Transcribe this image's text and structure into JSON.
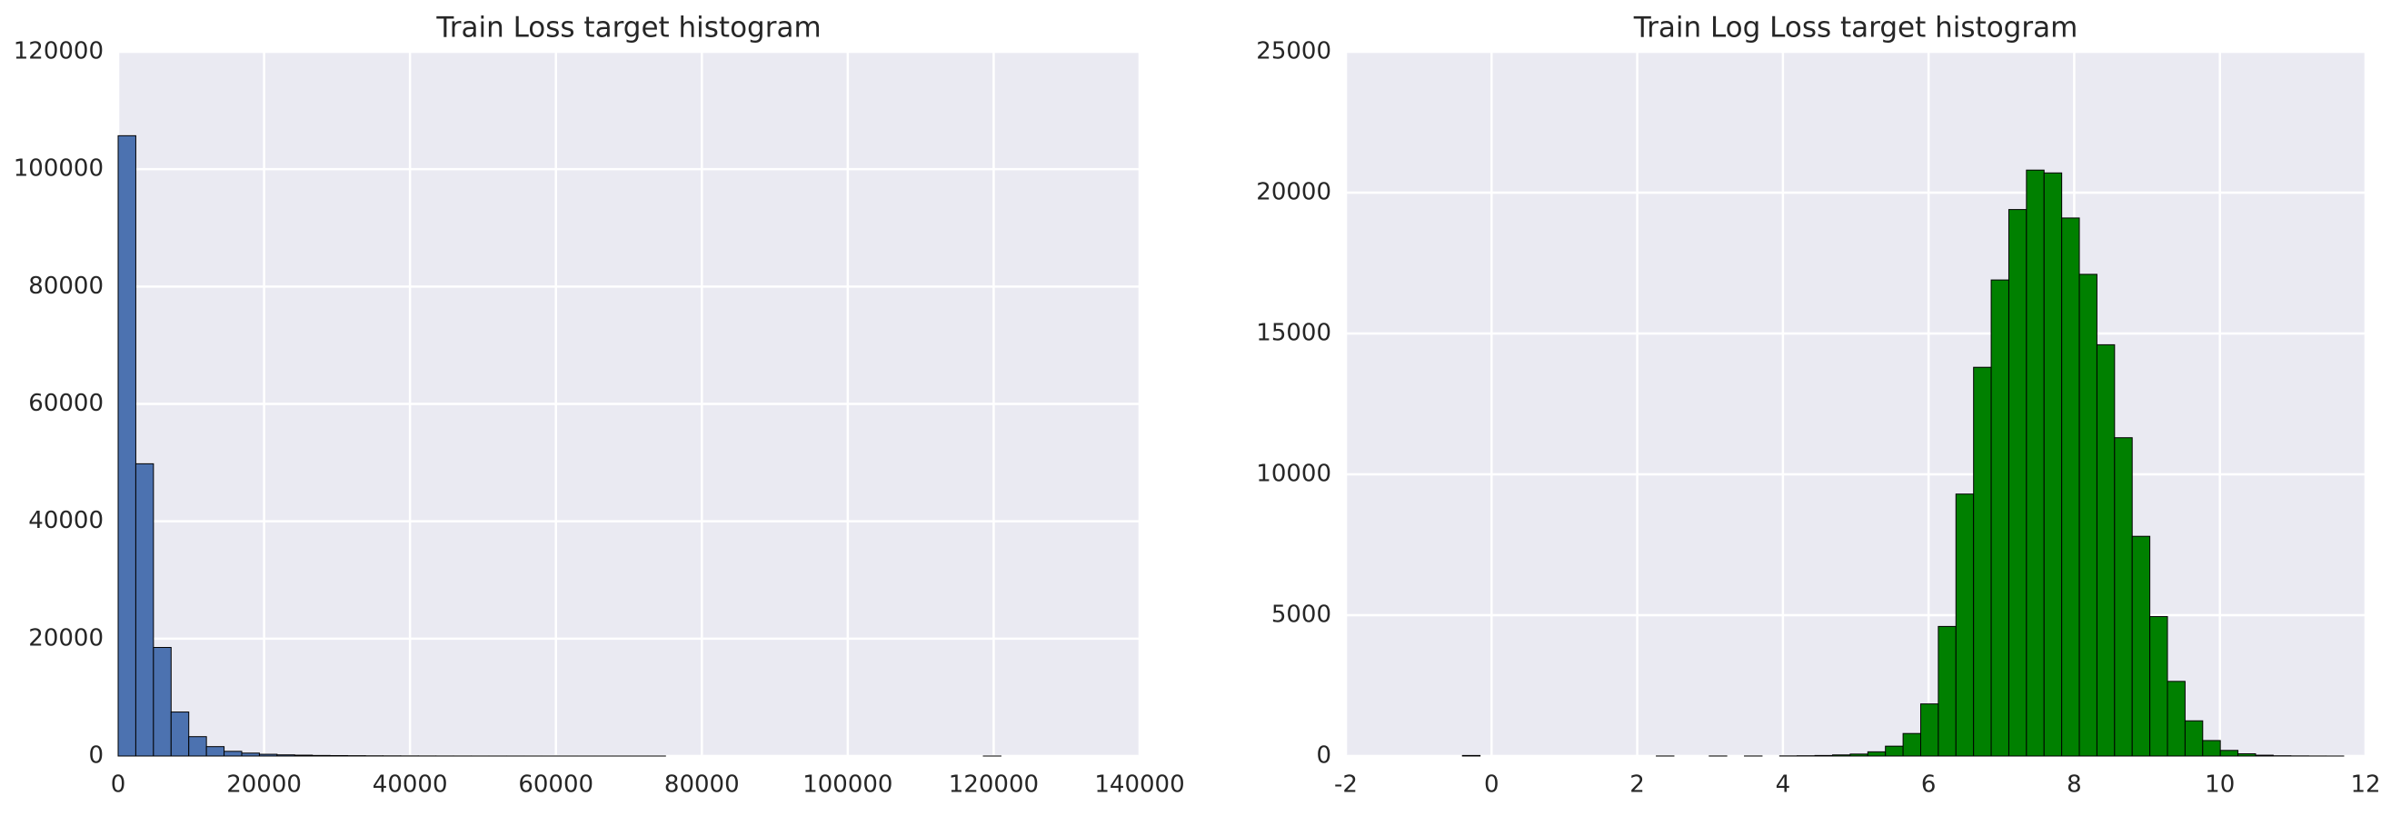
{
  "chart_data": [
    {
      "type": "histogram",
      "title": "Train Loss target histogram",
      "color": "#4c72b0",
      "grid": true,
      "bins": [
        0,
        2420,
        4840,
        7260,
        9680,
        12100,
        14520,
        16940,
        19360,
        21780,
        24200,
        26620,
        29040,
        31460,
        33880,
        36300,
        38720,
        41140,
        43560,
        45980,
        48400,
        50820,
        53240,
        55660,
        58080,
        60500,
        62920,
        65340,
        67760,
        70180,
        72600,
        75020,
        77440,
        79860,
        82280,
        84700,
        87120,
        89540,
        91960,
        94380,
        96800,
        99220,
        101640,
        104060,
        106480,
        108900,
        111320,
        113740,
        116160,
        118580,
        121000
      ],
      "values": [
        105700,
        49800,
        18500,
        7500,
        3300,
        1600,
        800,
        500,
        300,
        200,
        150,
        100,
        80,
        60,
        40,
        30,
        20,
        15,
        10,
        8,
        6,
        5,
        4,
        3,
        2,
        2,
        1,
        1,
        1,
        1,
        1,
        0,
        0,
        0,
        0,
        0,
        0,
        0,
        0,
        0,
        0,
        0,
        0,
        0,
        0,
        0,
        0,
        0,
        0,
        1
      ],
      "xlim": [
        0,
        140000
      ],
      "xticks": [
        0,
        20000,
        40000,
        60000,
        80000,
        100000,
        120000,
        140000
      ],
      "ylim": [
        0,
        120000
      ],
      "yticks": [
        0,
        20000,
        40000,
        60000,
        80000,
        100000,
        120000
      ]
    },
    {
      "type": "histogram",
      "title": "Train Log Loss target histogram",
      "color": "#008000",
      "grid": true,
      "bins": [
        -0.4,
        -0.158,
        0.084,
        0.326,
        0.568,
        0.81,
        1.052,
        1.294,
        1.536,
        1.778,
        2.02,
        2.262,
        2.504,
        2.746,
        2.988,
        3.23,
        3.472,
        3.714,
        3.956,
        4.198,
        4.44,
        4.682,
        4.924,
        5.166,
        5.408,
        5.65,
        5.892,
        6.134,
        6.376,
        6.618,
        6.86,
        7.102,
        7.344,
        7.586,
        7.828,
        8.07,
        8.312,
        8.554,
        8.796,
        9.038,
        9.28,
        9.522,
        9.764,
        10.006,
        10.248,
        10.49,
        10.732,
        10.974,
        11.216,
        11.458,
        11.7
      ],
      "values": [
        20,
        0,
        0,
        0,
        0,
        0,
        0,
        0,
        0,
        0,
        0,
        2,
        0,
        0,
        2,
        0,
        2,
        0,
        5,
        10,
        20,
        40,
        70,
        150,
        350,
        800,
        1850,
        4600,
        9300,
        13800,
        16900,
        19400,
        20800,
        20700,
        19100,
        17100,
        14600,
        11300,
        7800,
        4950,
        2650,
        1250,
        550,
        200,
        80,
        30,
        10,
        5,
        2,
        1
      ],
      "xlim": [
        -2,
        12
      ],
      "xticks": [
        -2,
        0,
        2,
        4,
        6,
        8,
        10,
        12
      ],
      "ylim": [
        0,
        25000
      ],
      "yticks": [
        0,
        5000,
        10000,
        15000,
        20000,
        25000
      ]
    }
  ]
}
